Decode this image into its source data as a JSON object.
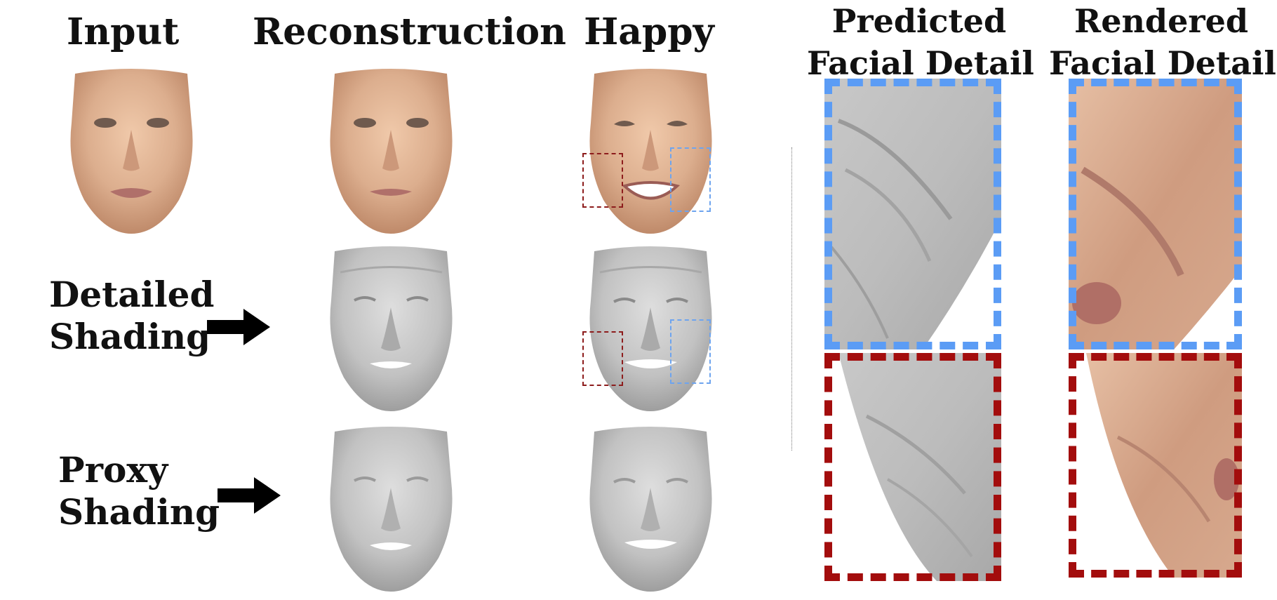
{
  "column_titles": {
    "input": "Input",
    "reconstruction": "Reconstruction",
    "happy": "Happy"
  },
  "row_labels": {
    "detailed_line1": "Detailed",
    "detailed_line2": "Shading",
    "proxy_line1": "Proxy",
    "proxy_line2": "Shading"
  },
  "detail_headers": {
    "predicted_line1": "Predicted",
    "predicted_line2": "Facial Detail",
    "rendered_line1": "Rendered",
    "rendered_line2": "Facial Detail"
  },
  "colors": {
    "skin": "#e2b598",
    "shading_gray": "#c4c4c4",
    "blue_highlight": "#5b9cf5",
    "red_highlight": "#a30d0d"
  }
}
